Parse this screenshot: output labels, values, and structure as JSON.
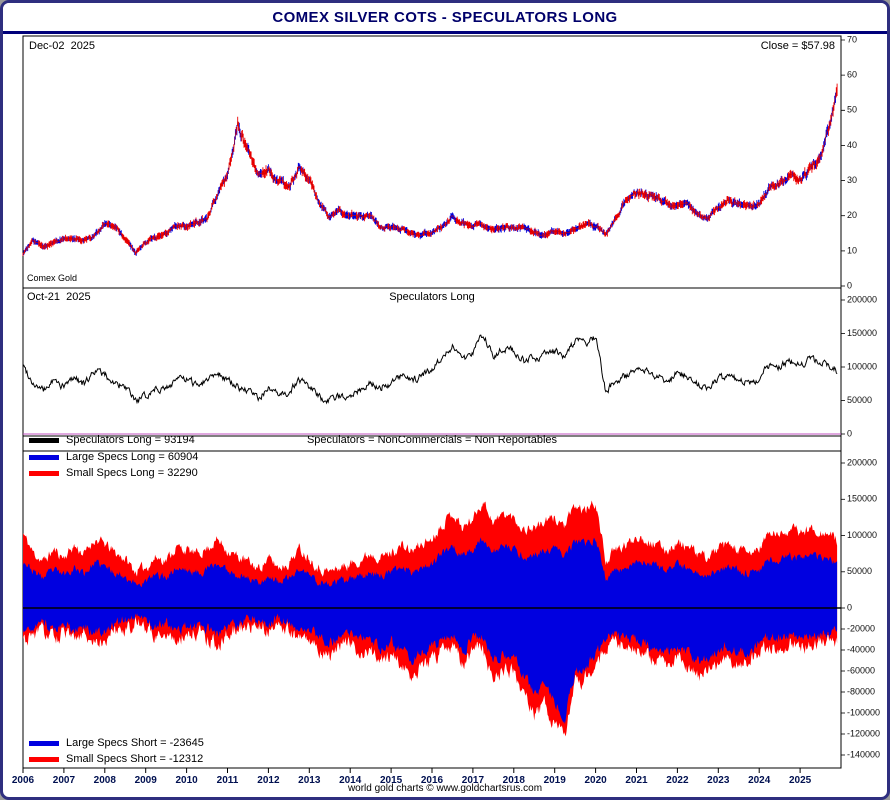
{
  "window": {
    "title": "COMEX SILVER COTS - SPECULATORS LONG",
    "footer": "world gold charts © www.goldchartsrus.com"
  },
  "colors": {
    "navy": "#00006a",
    "price_red": "#ee0000",
    "price_blue": "#0000dd",
    "spec_line": "#000000",
    "large_specs_blue": "#0000e0",
    "small_specs_red": "#ff0000",
    "separator_purple": "#c050c0"
  },
  "panel_price": {
    "date_label": "Dec-02  2025",
    "close_label": "Close = $57.98",
    "footnote": "Comex Gold",
    "y_ticks": [
      0,
      10,
      20,
      30,
      40,
      50,
      60,
      70
    ]
  },
  "panel_spec": {
    "date_label": "Oct-21  2025",
    "title": "Speculators Long",
    "y_ticks": [
      0,
      50000,
      100000,
      150000,
      200000
    ],
    "legend": {
      "color": "#000000",
      "label": "Speculators Long  = 93194"
    },
    "note": "Speculators = NonCommercials = Non Reportables"
  },
  "panel_breakdown": {
    "y_ticks_pos": [
      0,
      50000,
      100000,
      150000,
      200000
    ],
    "y_ticks_neg": [
      -20000,
      -40000,
      -60000,
      -80000,
      -100000,
      -120000,
      -140000
    ],
    "legend_long": [
      {
        "color": "#0000e0",
        "label": "Large Specs Long  = 60904"
      },
      {
        "color": "#ff0000",
        "label": "Small Specs Long  = 32290"
      }
    ],
    "legend_short": [
      {
        "color": "#0000e0",
        "label": "Large Specs Short = -23645"
      },
      {
        "color": "#ff0000",
        "label": "Small Specs Short = -12312"
      }
    ]
  },
  "x_axis": {
    "years": [
      2006,
      2007,
      2008,
      2009,
      2010,
      2011,
      2012,
      2013,
      2014,
      2015,
      2016,
      2017,
      2018,
      2019,
      2020,
      2021,
      2022,
      2023,
      2024,
      2025
    ]
  },
  "chart_data": [
    {
      "type": "line",
      "name": "Comex Silver Price",
      "panel": "price",
      "ylim": [
        0,
        70
      ],
      "annotations": [
        "Dec-02 2025",
        "Close = $57.98",
        "Comex Gold"
      ],
      "last_value": 57.98,
      "x": [
        2006,
        2006.25,
        2006.5,
        2006.75,
        2007,
        2007.25,
        2007.5,
        2007.75,
        2008,
        2008.25,
        2008.5,
        2008.75,
        2009,
        2009.25,
        2009.5,
        2009.75,
        2010,
        2010.25,
        2010.5,
        2010.75,
        2011,
        2011.25,
        2011.5,
        2011.75,
        2012,
        2012.25,
        2012.5,
        2012.75,
        2013,
        2013.25,
        2013.5,
        2013.75,
        2014,
        2014.25,
        2014.5,
        2014.75,
        2015,
        2015.25,
        2015.5,
        2015.75,
        2016,
        2016.25,
        2016.5,
        2016.75,
        2017,
        2017.25,
        2017.5,
        2017.75,
        2018,
        2018.25,
        2018.5,
        2018.75,
        2019,
        2019.25,
        2019.5,
        2019.75,
        2020,
        2020.25,
        2020.5,
        2020.75,
        2021,
        2021.25,
        2021.5,
        2021.75,
        2022,
        2022.25,
        2022.5,
        2022.75,
        2023,
        2023.25,
        2023.5,
        2023.75,
        2024,
        2024.25,
        2024.5,
        2024.75,
        2025,
        2025.25,
        2025.5,
        2025.75,
        2025.92
      ],
      "values": [
        9.2,
        13.0,
        11.0,
        12.5,
        13.3,
        13.4,
        12.8,
        14.3,
        17.5,
        17.0,
        13.5,
        9.5,
        12.5,
        14.0,
        14.8,
        17.2,
        16.8,
        18.3,
        19.0,
        26.0,
        31.5,
        46.0,
        38.5,
        31.5,
        33.0,
        29.5,
        28.0,
        33.5,
        30.5,
        23.5,
        19.8,
        21.5,
        20.3,
        19.5,
        20.0,
        16.5,
        16.8,
        16.3,
        15.0,
        14.6,
        15.2,
        16.8,
        19.8,
        17.6,
        17.2,
        17.5,
        16.3,
        17.0,
        16.7,
        16.4,
        15.3,
        14.5,
        15.6,
        15.0,
        16.2,
        17.5,
        17.2,
        14.5,
        19.5,
        24.3,
        26.5,
        26.2,
        25.3,
        23.4,
        23.3,
        24.0,
        19.8,
        19.2,
        22.3,
        24.2,
        23.5,
        22.6,
        23.2,
        27.8,
        29.5,
        31.8,
        30.4,
        33.0,
        37.5,
        47.0,
        57.98
      ]
    },
    {
      "type": "line",
      "name": "Speculators Long",
      "panel": "spec-long",
      "ylim": [
        0,
        200000
      ],
      "last_value": 93194,
      "x": [
        2006,
        2006.25,
        2006.5,
        2006.75,
        2007,
        2007.25,
        2007.5,
        2007.75,
        2008,
        2008.25,
        2008.5,
        2008.75,
        2009,
        2009.25,
        2009.5,
        2009.75,
        2010,
        2010.25,
        2010.5,
        2010.75,
        2011,
        2011.25,
        2011.5,
        2011.75,
        2012,
        2012.25,
        2012.5,
        2012.75,
        2013,
        2013.25,
        2013.5,
        2013.75,
        2014,
        2014.25,
        2014.5,
        2014.75,
        2015,
        2015.25,
        2015.5,
        2015.75,
        2016,
        2016.25,
        2016.5,
        2016.75,
        2017,
        2017.25,
        2017.5,
        2017.75,
        2018,
        2018.25,
        2018.5,
        2018.75,
        2019,
        2019.25,
        2019.5,
        2019.75,
        2020,
        2020.25,
        2020.5,
        2020.75,
        2021,
        2021.25,
        2021.5,
        2021.75,
        2022,
        2022.25,
        2022.5,
        2022.75,
        2023,
        2023.25,
        2023.5,
        2023.75,
        2024,
        2024.25,
        2024.5,
        2024.75,
        2025,
        2025.25,
        2025.5,
        2025.75,
        2025.92
      ],
      "values": [
        103000,
        76000,
        64000,
        80000,
        70000,
        86000,
        74000,
        95000,
        88000,
        76000,
        68000,
        50000,
        56000,
        70000,
        66000,
        84000,
        80000,
        74000,
        82000,
        94000,
        80000,
        70000,
        64000,
        54000,
        68000,
        56000,
        62000,
        82000,
        70000,
        54000,
        50000,
        56000,
        60000,
        66000,
        76000,
        70000,
        76000,
        86000,
        78000,
        88000,
        96000,
        116000,
        132000,
        110000,
        124000,
        148000,
        118000,
        130000,
        124000,
        108000,
        112000,
        118000,
        124000,
        114000,
        140000,
        134000,
        146000,
        64000,
        80000,
        86000,
        100000,
        94000,
        86000,
        80000,
        90000,
        84000,
        74000,
        70000,
        82000,
        86000,
        80000,
        74000,
        82000,
        104000,
        100000,
        110000,
        104000,
        110000,
        106000,
        100000,
        93194
      ]
    },
    {
      "type": "area",
      "name": "Large/Small Specs Long and Short",
      "panel": "breakdown",
      "ylim": [
        -140000,
        200000
      ],
      "x": [
        2006,
        2006.25,
        2006.5,
        2006.75,
        2007,
        2007.25,
        2007.5,
        2007.75,
        2008,
        2008.25,
        2008.5,
        2008.75,
        2009,
        2009.25,
        2009.5,
        2009.75,
        2010,
        2010.25,
        2010.5,
        2010.75,
        2011,
        2011.25,
        2011.5,
        2011.75,
        2012,
        2012.25,
        2012.5,
        2012.75,
        2013,
        2013.25,
        2013.5,
        2013.75,
        2014,
        2014.25,
        2014.5,
        2014.75,
        2015,
        2015.25,
        2015.5,
        2015.75,
        2016,
        2016.25,
        2016.5,
        2016.75,
        2017,
        2017.25,
        2017.5,
        2017.75,
        2018,
        2018.25,
        2018.5,
        2018.75,
        2019,
        2019.25,
        2019.5,
        2019.75,
        2020,
        2020.25,
        2020.5,
        2020.75,
        2021,
        2021.25,
        2021.5,
        2021.75,
        2022,
        2022.25,
        2022.5,
        2022.75,
        2023,
        2023.25,
        2023.5,
        2023.75,
        2024,
        2024.25,
        2024.5,
        2024.75,
        2025,
        2025.25,
        2025.5,
        2025.75,
        2025.92
      ],
      "series": [
        {
          "name": "Large Specs Long",
          "color": "#0000e0",
          "last_value": 60904,
          "values": [
            67000,
            50000,
            42000,
            52000,
            46000,
            56000,
            48000,
            62000,
            57000,
            49000,
            44000,
            33000,
            36000,
            46000,
            43000,
            55000,
            52000,
            48000,
            53000,
            61000,
            52000,
            46000,
            42000,
            35000,
            44000,
            36000,
            40000,
            53000,
            46000,
            35000,
            33000,
            36000,
            39000,
            43000,
            49000,
            46000,
            49000,
            56000,
            51000,
            57000,
            62000,
            75000,
            86000,
            72000,
            81000,
            96000,
            77000,
            85000,
            81000,
            70000,
            73000,
            77000,
            81000,
            74000,
            91000,
            87000,
            95000,
            42000,
            52000,
            56000,
            65000,
            61000,
            56000,
            52000,
            59000,
            55000,
            48000,
            46000,
            53000,
            56000,
            52000,
            48000,
            53000,
            68000,
            65000,
            72000,
            68000,
            72000,
            69000,
            65000,
            60904
          ]
        },
        {
          "name": "Small Specs Long",
          "color": "#ff0000",
          "last_value": 32290,
          "values": [
            36000,
            26000,
            22000,
            28000,
            24000,
            30000,
            26000,
            33000,
            31000,
            27000,
            24000,
            17000,
            20000,
            24000,
            23000,
            29000,
            28000,
            26000,
            29000,
            33000,
            28000,
            24000,
            22000,
            19000,
            24000,
            20000,
            22000,
            29000,
            24000,
            19000,
            17000,
            20000,
            21000,
            23000,
            27000,
            24000,
            27000,
            30000,
            27000,
            31000,
            34000,
            41000,
            46000,
            38000,
            43000,
            52000,
            41000,
            45000,
            43000,
            38000,
            39000,
            41000,
            43000,
            40000,
            49000,
            47000,
            51000,
            22000,
            28000,
            30000,
            35000,
            33000,
            30000,
            28000,
            31000,
            29000,
            26000,
            24000,
            29000,
            30000,
            28000,
            26000,
            29000,
            36000,
            35000,
            38000,
            36000,
            38000,
            37000,
            35000,
            32290
          ]
        },
        {
          "name": "Large Specs Short",
          "color": "#0000e0",
          "last_value": -23645,
          "values": [
            -22000,
            -18000,
            -15000,
            -20000,
            -16000,
            -22000,
            -17000,
            -24000,
            -20000,
            -15000,
            -12000,
            -10000,
            -12000,
            -18000,
            -15000,
            -22000,
            -18000,
            -15000,
            -20000,
            -25000,
            -18000,
            -14000,
            -12000,
            -10000,
            -14000,
            -11000,
            -13000,
            -22000,
            -20000,
            -28000,
            -32000,
            -26000,
            -24000,
            -30000,
            -28000,
            -38000,
            -32000,
            -40000,
            -48000,
            -42000,
            -36000,
            -30000,
            -25000,
            -40000,
            -30000,
            -28000,
            -52000,
            -44000,
            -48000,
            -64000,
            -80000,
            -72000,
            -90000,
            -105000,
            -60000,
            -55000,
            -45000,
            -30000,
            -25000,
            -28000,
            -30000,
            -35000,
            -40000,
            -42000,
            -38000,
            -44000,
            -52000,
            -48000,
            -40000,
            -36000,
            -44000,
            -40000,
            -32000,
            -28000,
            -30000,
            -26000,
            -28000,
            -26000,
            -25000,
            -24000,
            -23645
          ]
        },
        {
          "name": "Small Specs Short",
          "color": "#ff0000",
          "last_value": -12312,
          "values": [
            -10000,
            -8000,
            -7000,
            -9000,
            -8000,
            -10000,
            -8000,
            -10000,
            -9000,
            -7000,
            -6000,
            -5000,
            -6000,
            -8000,
            -7000,
            -9000,
            -8000,
            -7000,
            -9000,
            -10000,
            -8000,
            -6000,
            -6000,
            -5000,
            -7000,
            -6000,
            -6000,
            -9000,
            -9000,
            -11000,
            -12000,
            -10000,
            -10000,
            -12000,
            -11000,
            -14000,
            -12000,
            -14000,
            -16000,
            -15000,
            -13000,
            -11000,
            -10000,
            -14000,
            -11000,
            -10000,
            -16000,
            -14000,
            -15000,
            -18000,
            -22000,
            -20000,
            -22000,
            -15000,
            -14000,
            -13000,
            -12000,
            -9000,
            -8000,
            -9000,
            -10000,
            -11000,
            -12000,
            -12000,
            -11000,
            -12000,
            -14000,
            -13000,
            -12000,
            -11000,
            -12000,
            -11000,
            -10000,
            -9000,
            -10000,
            -9000,
            -9000,
            -9000,
            -8500,
            -8000,
            -12312
          ]
        }
      ]
    }
  ]
}
